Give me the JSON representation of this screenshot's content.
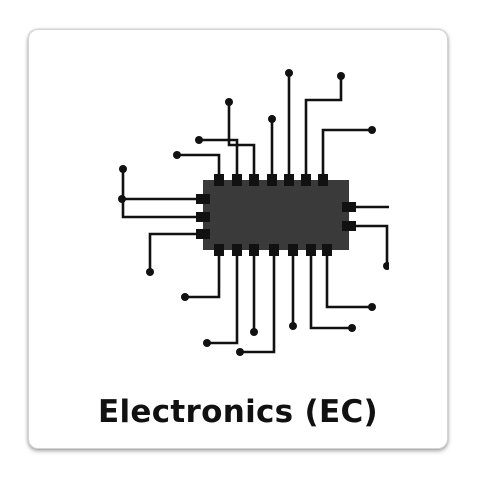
{
  "card": {
    "title": "Electronics (EC)",
    "icon": "integrated-circuit-chip-icon"
  },
  "colors": {
    "chip_body": "#3a3a3a",
    "pins_and_traces": "#111111",
    "title_text": "#111111",
    "card_border": "#d4d4d4"
  }
}
